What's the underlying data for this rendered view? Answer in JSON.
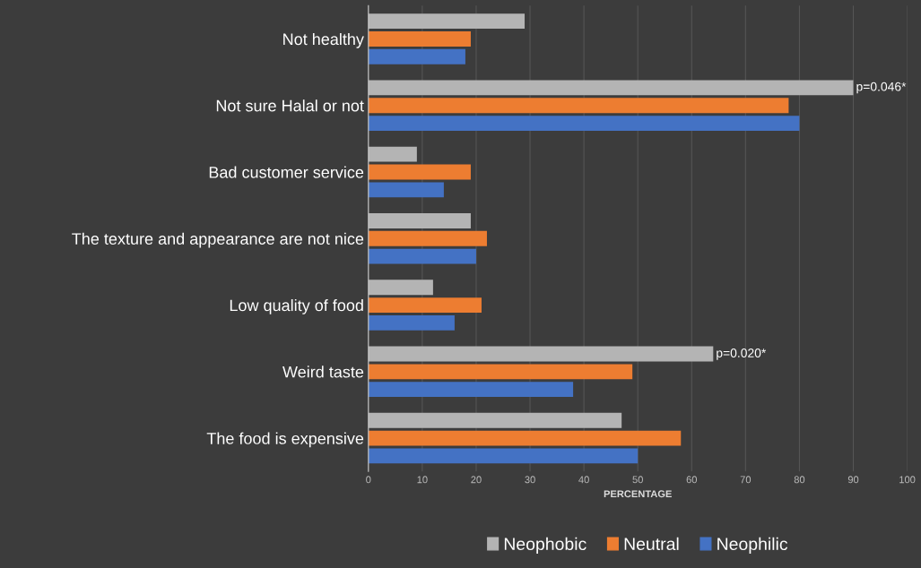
{
  "chart_data": {
    "type": "bar",
    "orientation": "horizontal",
    "xlabel": "PERCENTAGE",
    "categories": [
      "Not healthy",
      "Not sure Halal or not",
      "Bad customer service",
      "The texture and appearance are not nice",
      "Low quality of food",
      "Weird taste",
      "The food is expensive"
    ],
    "series": [
      {
        "name": "Neophobic",
        "color": "#b4b4b4",
        "values": [
          29,
          90,
          9,
          19,
          12,
          64,
          47
        ]
      },
      {
        "name": "Neutral",
        "color": "#ed7d31",
        "values": [
          19,
          78,
          19,
          22,
          21,
          49,
          58
        ]
      },
      {
        "name": "Neophilic",
        "color": "#4472c4",
        "values": [
          18,
          80,
          14,
          20,
          16,
          38,
          50
        ]
      }
    ],
    "xlim": [
      0,
      100
    ],
    "xticks": [
      0,
      10,
      20,
      30,
      40,
      50,
      60,
      70,
      80,
      90,
      100
    ],
    "grid": "x",
    "legend": "bottom",
    "annotations": [
      "p=0.046*",
      "p=0.020*"
    ]
  }
}
